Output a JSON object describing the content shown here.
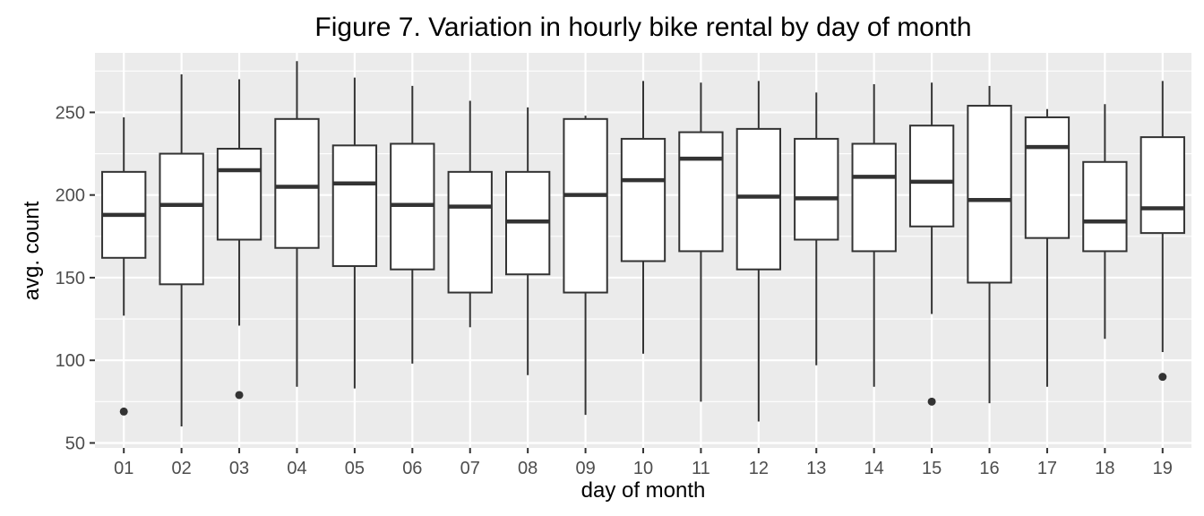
{
  "chart_data": {
    "type": "boxplot",
    "title": "Figure 7. Variation in hourly bike rental by day of month",
    "xlabel": "day of month",
    "ylabel": "avg. count",
    "ylim": [
      47,
      286
    ],
    "yticks": [
      50,
      100,
      150,
      200,
      250
    ],
    "ytick_labels": [
      "50",
      "100",
      "150",
      "200",
      "250"
    ],
    "grid": true,
    "categories": [
      "01",
      "02",
      "03",
      "04",
      "05",
      "06",
      "07",
      "08",
      "09",
      "10",
      "11",
      "12",
      "13",
      "14",
      "15",
      "16",
      "17",
      "18",
      "19"
    ],
    "boxes": [
      {
        "x": "01",
        "whisker_low": 127,
        "q1": 162,
        "median": 188,
        "q3": 214,
        "whisker_high": 247,
        "outliers": [
          69
        ]
      },
      {
        "x": "02",
        "whisker_low": 60,
        "q1": 146,
        "median": 194,
        "q3": 225,
        "whisker_high": 273,
        "outliers": []
      },
      {
        "x": "03",
        "whisker_low": 121,
        "q1": 173,
        "median": 215,
        "q3": 228,
        "whisker_high": 270,
        "outliers": [
          79
        ]
      },
      {
        "x": "04",
        "whisker_low": 84,
        "q1": 168,
        "median": 205,
        "q3": 246,
        "whisker_high": 281,
        "outliers": []
      },
      {
        "x": "05",
        "whisker_low": 83,
        "q1": 157,
        "median": 207,
        "q3": 230,
        "whisker_high": 271,
        "outliers": []
      },
      {
        "x": "06",
        "whisker_low": 98,
        "q1": 155,
        "median": 194,
        "q3": 231,
        "whisker_high": 266,
        "outliers": []
      },
      {
        "x": "07",
        "whisker_low": 120,
        "q1": 141,
        "median": 193,
        "q3": 214,
        "whisker_high": 257,
        "outliers": []
      },
      {
        "x": "08",
        "whisker_low": 91,
        "q1": 152,
        "median": 184,
        "q3": 214,
        "whisker_high": 253,
        "outliers": []
      },
      {
        "x": "09",
        "whisker_low": 67,
        "q1": 141,
        "median": 200,
        "q3": 246,
        "whisker_high": 248,
        "outliers": []
      },
      {
        "x": "10",
        "whisker_low": 104,
        "q1": 160,
        "median": 209,
        "q3": 234,
        "whisker_high": 269,
        "outliers": []
      },
      {
        "x": "11",
        "whisker_low": 75,
        "q1": 166,
        "median": 222,
        "q3": 238,
        "whisker_high": 268,
        "outliers": []
      },
      {
        "x": "12",
        "whisker_low": 63,
        "q1": 155,
        "median": 199,
        "q3": 240,
        "whisker_high": 269,
        "outliers": []
      },
      {
        "x": "13",
        "whisker_low": 97,
        "q1": 173,
        "median": 198,
        "q3": 234,
        "whisker_high": 262,
        "outliers": []
      },
      {
        "x": "14",
        "whisker_low": 84,
        "q1": 166,
        "median": 211,
        "q3": 231,
        "whisker_high": 267,
        "outliers": []
      },
      {
        "x": "15",
        "whisker_low": 128,
        "q1": 181,
        "median": 208,
        "q3": 242,
        "whisker_high": 268,
        "outliers": [
          75
        ]
      },
      {
        "x": "16",
        "whisker_low": 74,
        "q1": 147,
        "median": 197,
        "q3": 254,
        "whisker_high": 266,
        "outliers": []
      },
      {
        "x": "17",
        "whisker_low": 84,
        "q1": 174,
        "median": 229,
        "q3": 247,
        "whisker_high": 252,
        "outliers": []
      },
      {
        "x": "18",
        "whisker_low": 113,
        "q1": 166,
        "median": 184,
        "q3": 220,
        "whisker_high": 255,
        "outliers": []
      },
      {
        "x": "19",
        "whisker_low": 105,
        "q1": 177,
        "median": 192,
        "q3": 235,
        "whisker_high": 269,
        "outliers": [
          90
        ]
      }
    ],
    "colors": {
      "panel_background": "#ebebeb",
      "grid_major": "#ffffff",
      "box_fill": "#ffffff",
      "box_stroke": "#333333",
      "outlier": "#333333"
    }
  }
}
